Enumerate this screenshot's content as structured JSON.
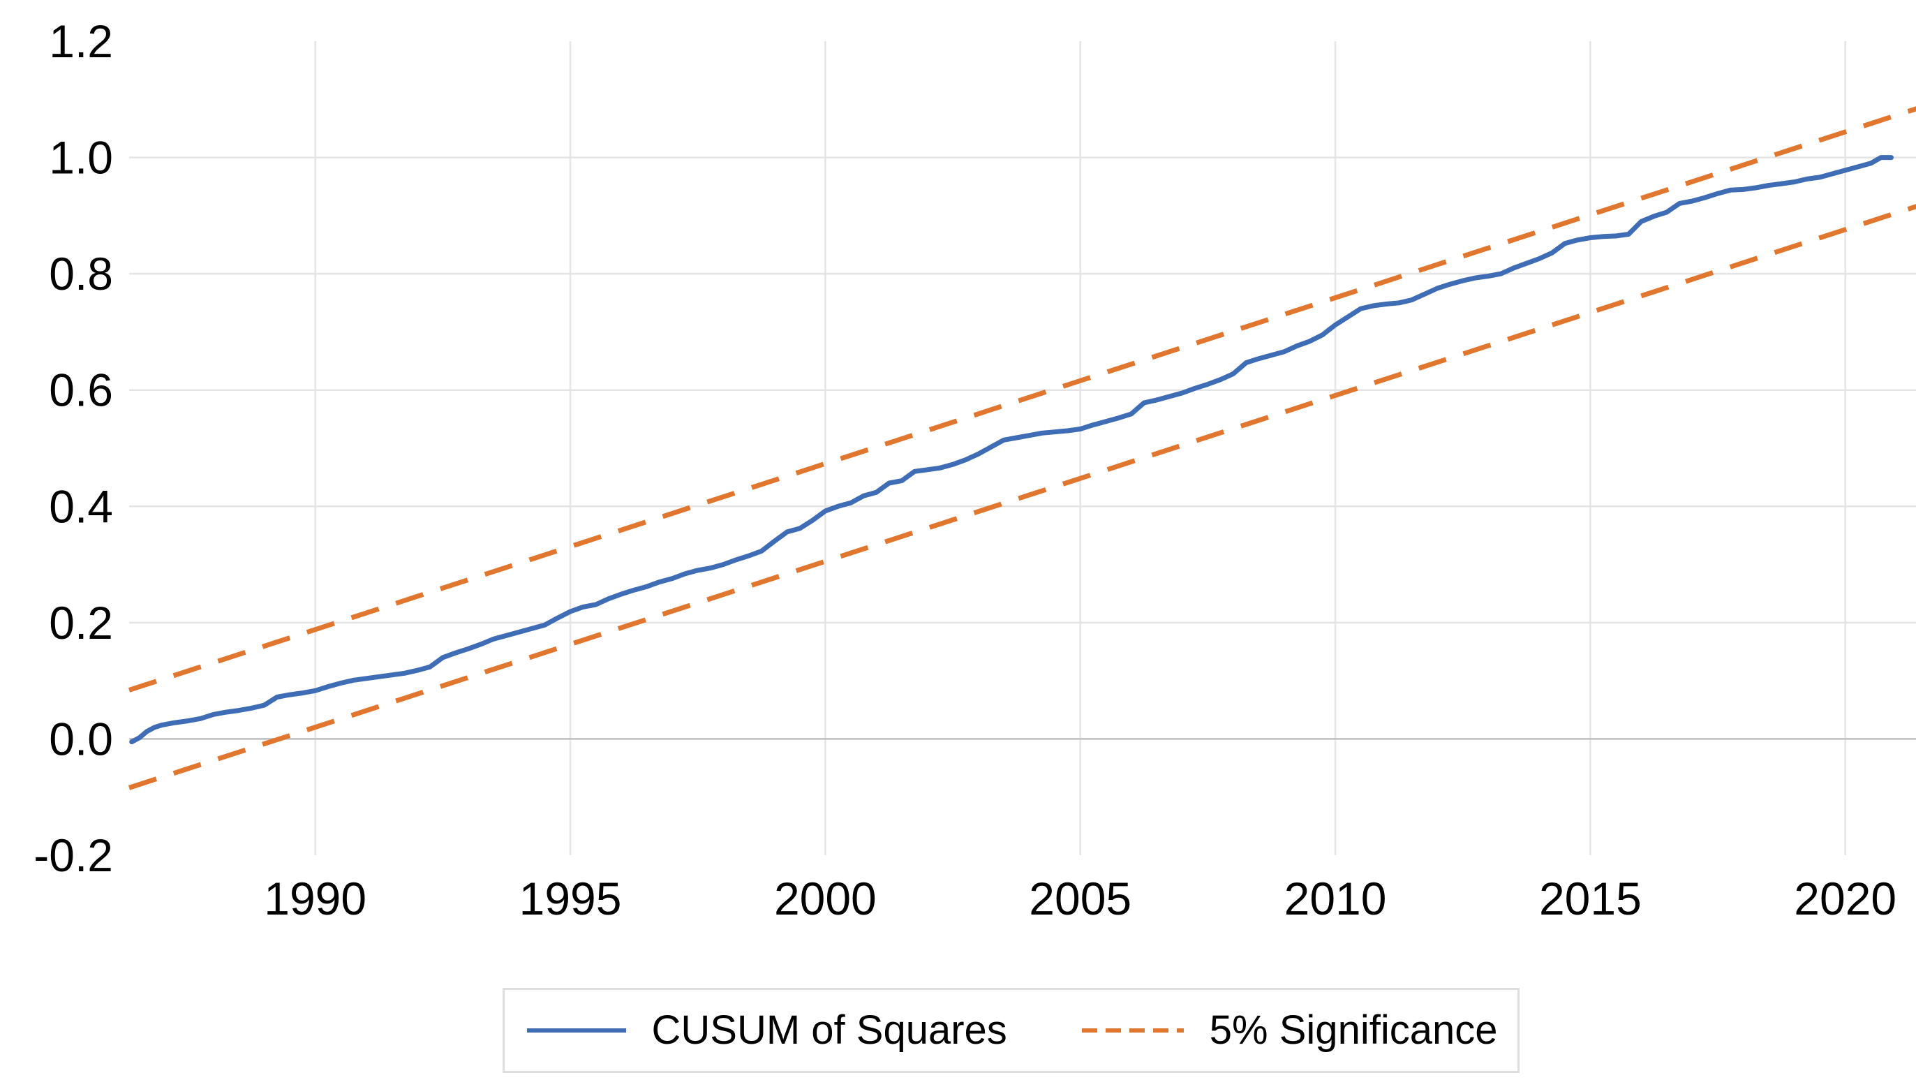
{
  "page": {
    "background": "#FFFFFF"
  },
  "chart_data": {
    "type": "line",
    "title": "",
    "xlabel": "",
    "ylabel": "",
    "x_axis": {
      "range": [
        1986.35,
        2021.4
      ],
      "gridlines": true,
      "ticks": [
        {
          "value": 1990,
          "label": "1990"
        },
        {
          "value": 1995,
          "label": "1995"
        },
        {
          "value": 2000,
          "label": "2000"
        },
        {
          "value": 2005,
          "label": "2005"
        },
        {
          "value": 2010,
          "label": "2010"
        },
        {
          "value": 2015,
          "label": "2015"
        },
        {
          "value": 2020,
          "label": "2020"
        }
      ]
    },
    "y_axis": {
      "range": [
        -0.2,
        1.2
      ],
      "gridline_values": [
        0.0,
        0.2,
        0.4,
        0.6,
        0.8,
        1.0
      ],
      "ticks": [
        {
          "value": 1.2,
          "label": "1.2"
        },
        {
          "value": 1.0,
          "label": "1.0"
        },
        {
          "value": 0.8,
          "label": "0.8"
        },
        {
          "value": 0.6,
          "label": "0.6"
        },
        {
          "value": 0.4,
          "label": "0.4"
        },
        {
          "value": 0.2,
          "label": "0.2"
        },
        {
          "value": 0.0,
          "label": "0.0"
        },
        {
          "value": -0.2,
          "label": "-0.2"
        }
      ]
    },
    "styles": {
      "grid_color": "#E4E4E4",
      "zero_line_color": "#BFBFBF",
      "text_color": "#000000",
      "blue": "#3E6CB5",
      "orange": "#E1762F"
    },
    "series": [
      {
        "name": "CUSUM of Squares",
        "color": "#3E6CB5",
        "line_style": "solid",
        "points": [
          [
            1986.4,
            -0.005
          ],
          [
            1986.55,
            0.002
          ],
          [
            1986.7,
            0.013
          ],
          [
            1986.85,
            0.02
          ],
          [
            1987,
            0.024
          ],
          [
            1987.25,
            0.028
          ],
          [
            1987.5,
            0.031
          ],
          [
            1987.75,
            0.035
          ],
          [
            1988,
            0.042
          ],
          [
            1988.25,
            0.046
          ],
          [
            1988.5,
            0.049
          ],
          [
            1988.75,
            0.053
          ],
          [
            1989,
            0.058
          ],
          [
            1989.25,
            0.072
          ],
          [
            1989.5,
            0.076
          ],
          [
            1989.75,
            0.079
          ],
          [
            1990,
            0.083
          ],
          [
            1990.25,
            0.09
          ],
          [
            1990.5,
            0.096
          ],
          [
            1990.75,
            0.101
          ],
          [
            1991,
            0.104
          ],
          [
            1991.25,
            0.107
          ],
          [
            1991.5,
            0.11
          ],
          [
            1991.75,
            0.113
          ],
          [
            1992,
            0.118
          ],
          [
            1992.25,
            0.124
          ],
          [
            1992.5,
            0.14
          ],
          [
            1992.75,
            0.148
          ],
          [
            1993,
            0.155
          ],
          [
            1993.25,
            0.163
          ],
          [
            1993.5,
            0.172
          ],
          [
            1993.75,
            0.178
          ],
          [
            1994,
            0.184
          ],
          [
            1994.25,
            0.19
          ],
          [
            1994.5,
            0.196
          ],
          [
            1994.75,
            0.208
          ],
          [
            1995,
            0.219
          ],
          [
            1995.25,
            0.227
          ],
          [
            1995.5,
            0.231
          ],
          [
            1995.75,
            0.241
          ],
          [
            1996,
            0.249
          ],
          [
            1996.25,
            0.256
          ],
          [
            1996.5,
            0.262
          ],
          [
            1996.75,
            0.27
          ],
          [
            1997,
            0.276
          ],
          [
            1997.25,
            0.284
          ],
          [
            1997.5,
            0.29
          ],
          [
            1997.75,
            0.294
          ],
          [
            1998,
            0.3
          ],
          [
            1998.25,
            0.308
          ],
          [
            1998.5,
            0.315
          ],
          [
            1998.75,
            0.323
          ],
          [
            1999,
            0.34
          ],
          [
            1999.25,
            0.356
          ],
          [
            1999.5,
            0.362
          ],
          [
            1999.75,
            0.376
          ],
          [
            2000,
            0.392
          ],
          [
            2000.25,
            0.4
          ],
          [
            2000.5,
            0.406
          ],
          [
            2000.75,
            0.418
          ],
          [
            2001,
            0.424
          ],
          [
            2001.25,
            0.44
          ],
          [
            2001.5,
            0.444
          ],
          [
            2001.75,
            0.46
          ],
          [
            2002,
            0.463
          ],
          [
            2002.25,
            0.466
          ],
          [
            2002.5,
            0.472
          ],
          [
            2002.75,
            0.48
          ],
          [
            2003,
            0.49
          ],
          [
            2003.25,
            0.502
          ],
          [
            2003.5,
            0.514
          ],
          [
            2003.75,
            0.518
          ],
          [
            2004,
            0.522
          ],
          [
            2004.25,
            0.526
          ],
          [
            2004.5,
            0.528
          ],
          [
            2004.75,
            0.53
          ],
          [
            2005,
            0.533
          ],
          [
            2005.25,
            0.54
          ],
          [
            2005.5,
            0.546
          ],
          [
            2005.75,
            0.552
          ],
          [
            2006,
            0.559
          ],
          [
            2006.25,
            0.578
          ],
          [
            2006.5,
            0.583
          ],
          [
            2006.75,
            0.589
          ],
          [
            2007,
            0.595
          ],
          [
            2007.25,
            0.603
          ],
          [
            2007.5,
            0.61
          ],
          [
            2007.75,
            0.618
          ],
          [
            2008,
            0.628
          ],
          [
            2008.25,
            0.647
          ],
          [
            2008.5,
            0.654
          ],
          [
            2008.75,
            0.66
          ],
          [
            2009,
            0.666
          ],
          [
            2009.25,
            0.676
          ],
          [
            2009.5,
            0.684
          ],
          [
            2009.75,
            0.695
          ],
          [
            2010,
            0.712
          ],
          [
            2010.25,
            0.726
          ],
          [
            2010.5,
            0.74
          ],
          [
            2010.75,
            0.745
          ],
          [
            2011,
            0.748
          ],
          [
            2011.25,
            0.75
          ],
          [
            2011.5,
            0.755
          ],
          [
            2011.75,
            0.765
          ],
          [
            2012,
            0.775
          ],
          [
            2012.25,
            0.782
          ],
          [
            2012.5,
            0.788
          ],
          [
            2012.75,
            0.793
          ],
          [
            2013,
            0.796
          ],
          [
            2013.25,
            0.8
          ],
          [
            2013.5,
            0.81
          ],
          [
            2013.75,
            0.818
          ],
          [
            2014,
            0.826
          ],
          [
            2014.25,
            0.836
          ],
          [
            2014.5,
            0.852
          ],
          [
            2014.75,
            0.858
          ],
          [
            2015,
            0.862
          ],
          [
            2015.25,
            0.864
          ],
          [
            2015.5,
            0.865
          ],
          [
            2015.75,
            0.868
          ],
          [
            2016,
            0.89
          ],
          [
            2016.25,
            0.899
          ],
          [
            2016.5,
            0.906
          ],
          [
            2016.75,
            0.921
          ],
          [
            2017,
            0.925
          ],
          [
            2017.25,
            0.931
          ],
          [
            2017.5,
            0.938
          ],
          [
            2017.75,
            0.944
          ],
          [
            2018,
            0.945
          ],
          [
            2018.25,
            0.948
          ],
          [
            2018.5,
            0.952
          ],
          [
            2018.75,
            0.955
          ],
          [
            2019,
            0.958
          ],
          [
            2019.25,
            0.963
          ],
          [
            2019.5,
            0.966
          ],
          [
            2019.75,
            0.972
          ],
          [
            2020,
            0.978
          ],
          [
            2020.25,
            0.984
          ],
          [
            2020.5,
            0.99
          ],
          [
            2020.7,
            1.0
          ],
          [
            2020.9,
            1.0
          ]
        ]
      },
      {
        "name": "5% Significance",
        "color": "#E1762F",
        "line_style": "dashed",
        "segments": [
          [
            [
              1986.35,
              0.084
            ],
            [
              2021.4,
              1.084
            ]
          ],
          [
            [
              1986.35,
              -0.084
            ],
            [
              2021.4,
              0.916
            ]
          ]
        ]
      }
    ],
    "legend": {
      "position": "bottom",
      "entries": [
        "CUSUM of Squares",
        "5% Significance"
      ]
    }
  }
}
